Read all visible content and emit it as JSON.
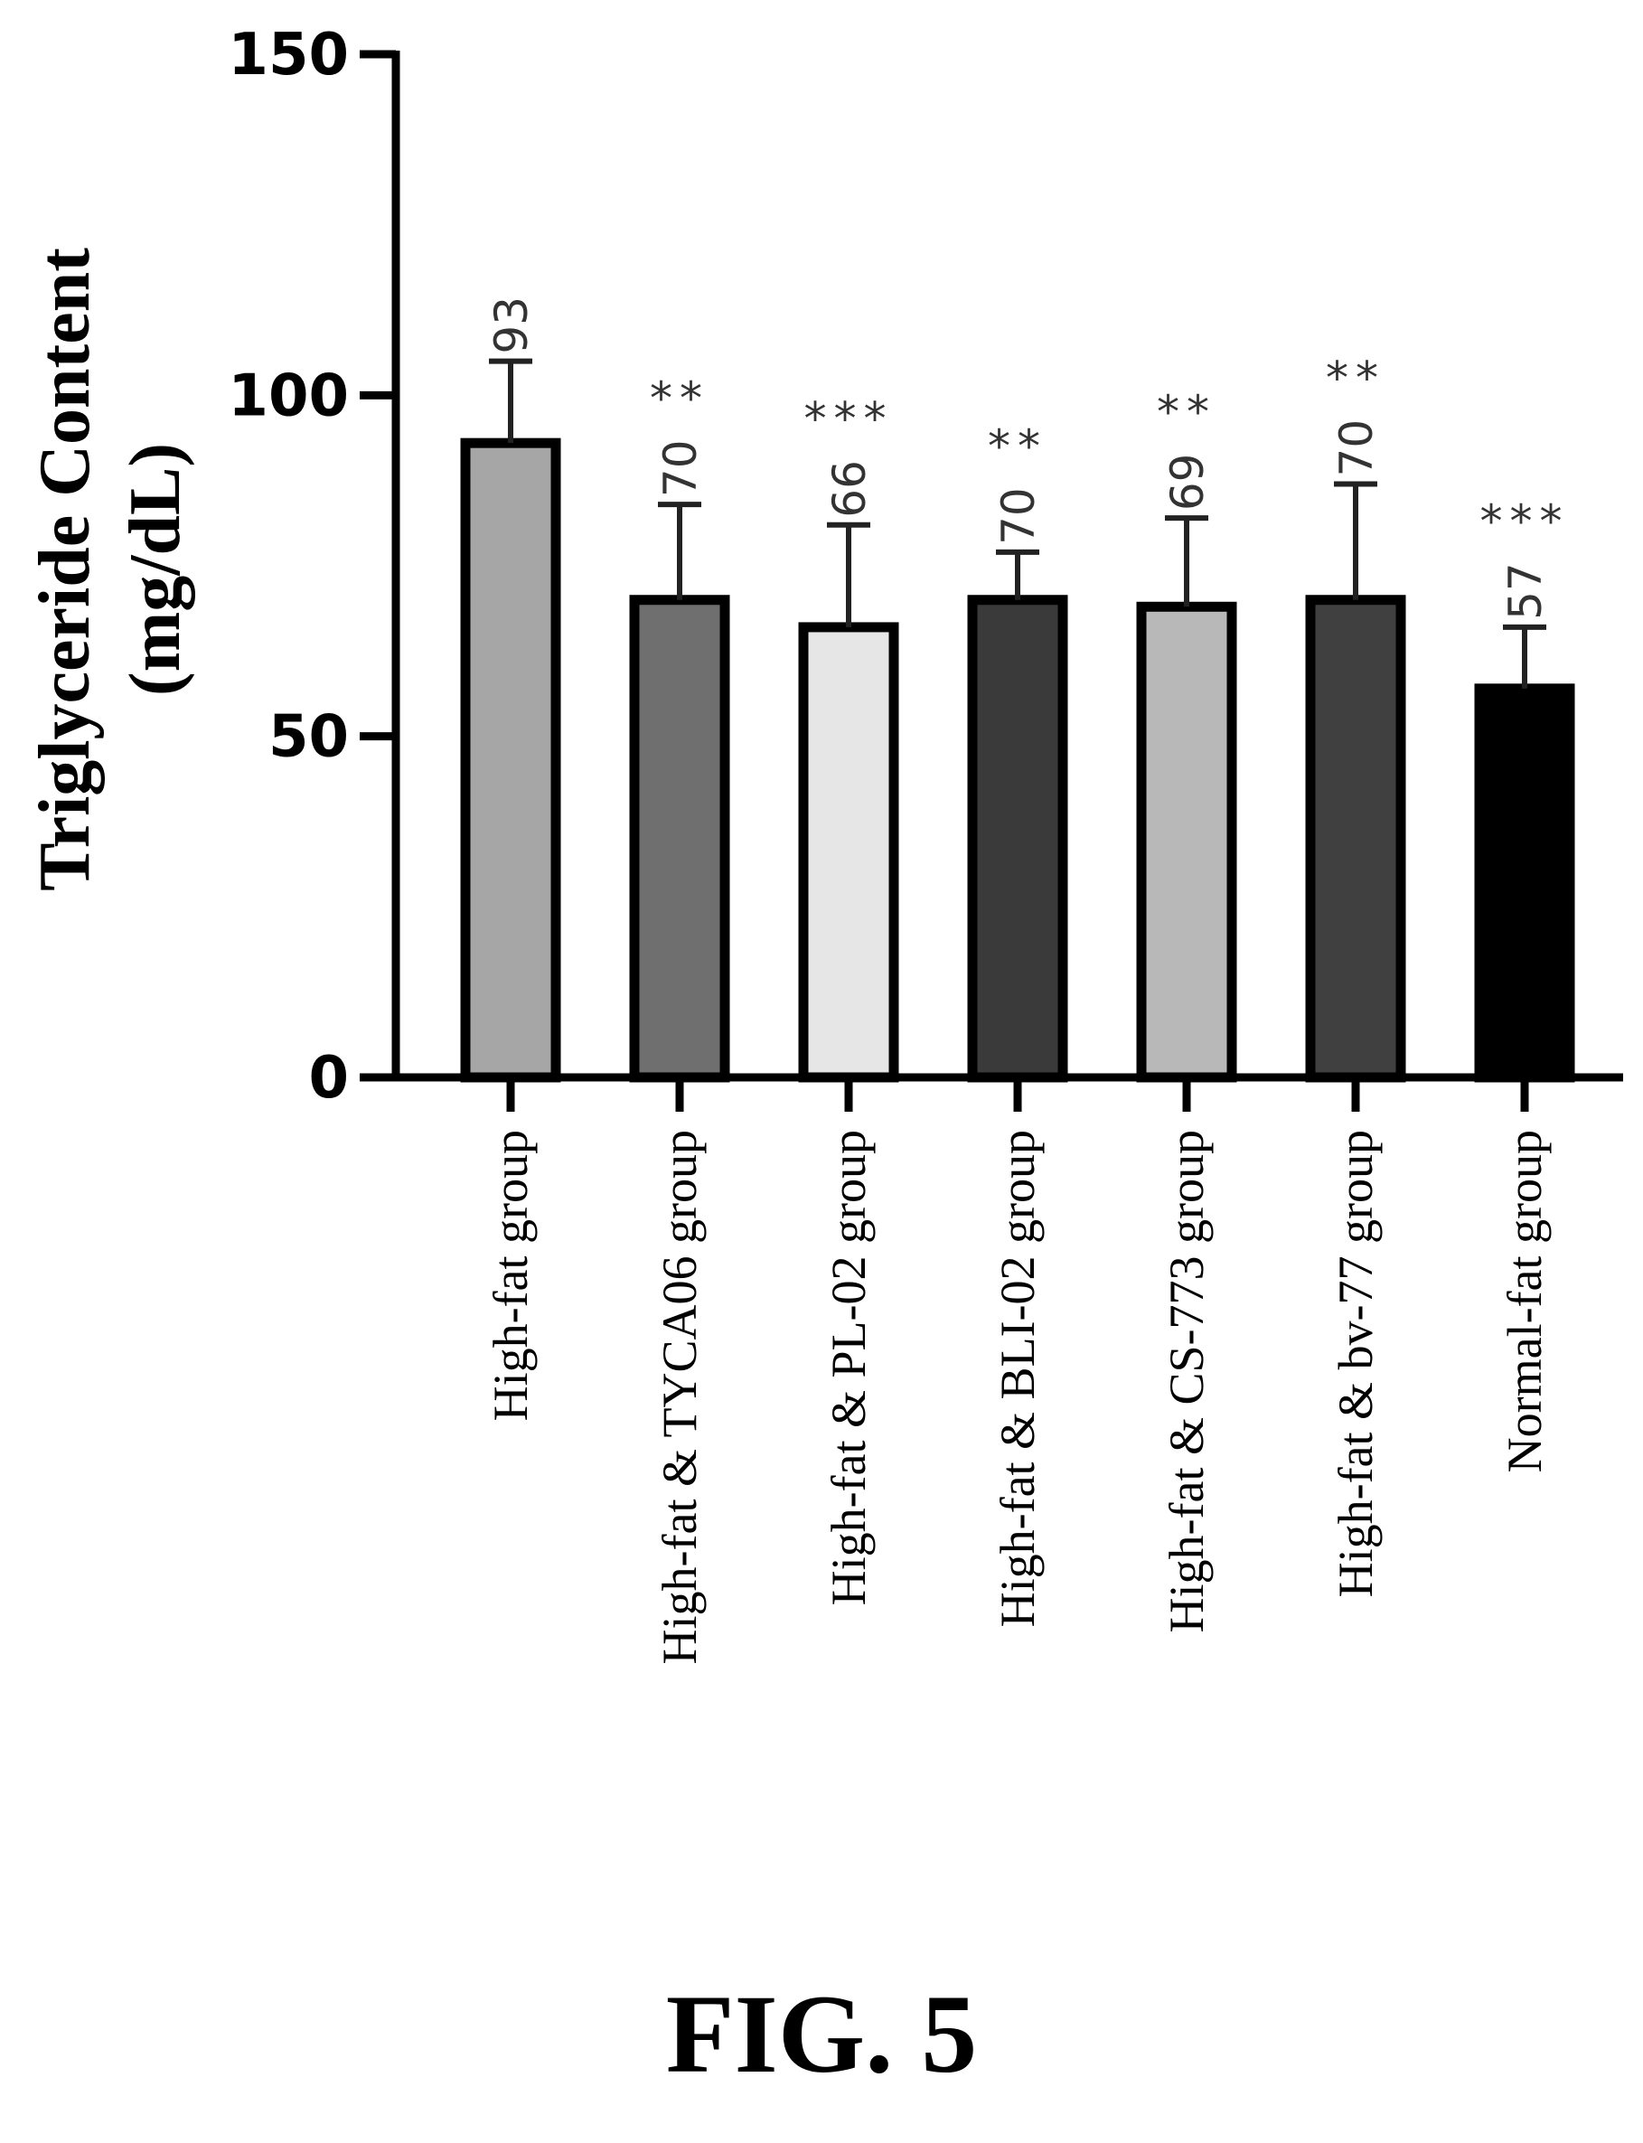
{
  "figure_caption": "FIG. 5",
  "chart_data": {
    "type": "bar",
    "ylabel_lines": [
      "Triglyceride Content",
      "(mg/dL)"
    ],
    "xlabel": "",
    "ylim": [
      0,
      150
    ],
    "yticks": [
      "0",
      "50",
      "100",
      "150"
    ],
    "categories": [
      "High-fat group",
      "High-fat & TYCA06 group",
      "High-fat & PL-02 group",
      "High-fat & BLI-02 group",
      "High-fat & CS-773 group",
      "High-fat & bv-77 group",
      "Normal-fat group"
    ],
    "values": [
      93,
      70,
      66,
      70,
      69,
      70,
      57
    ],
    "value_labels": [
      "93",
      "70",
      "66",
      "70",
      "69",
      "70",
      "57"
    ],
    "error_upper": [
      105,
      84,
      81,
      77,
      82,
      87,
      66
    ],
    "significance": [
      "",
      "**",
      "***",
      "**",
      "**",
      "**",
      "***"
    ],
    "bar_colors": [
      "#a6a6a6",
      "#6f6f6f",
      "#e6e6e6",
      "#3a3a3a",
      "#b8b8b8",
      "#404040",
      "#000000"
    ],
    "grid": false,
    "legend": "none"
  }
}
